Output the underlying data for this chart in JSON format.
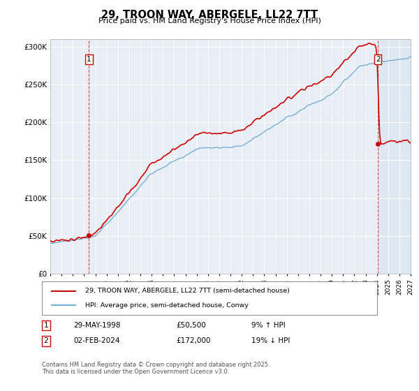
{
  "title": "29, TROON WAY, ABERGELE, LL22 7TT",
  "subtitle": "Price paid vs. HM Land Registry's House Price Index (HPI)",
  "legend_line1": "29, TROON WAY, ABERGELE, LL22 7TT (semi-detached house)",
  "legend_line2": "HPI: Average price, semi-detached house, Conwy",
  "annotation1_date": "29-MAY-1998",
  "annotation1_price": "£50,500",
  "annotation1_hpi": "9% ↑ HPI",
  "annotation1_year": 1998.42,
  "annotation1_value": 50500,
  "annotation2_date": "02-FEB-2024",
  "annotation2_price": "£172,000",
  "annotation2_hpi": "19% ↓ HPI",
  "annotation2_year": 2024.09,
  "annotation2_value": 172000,
  "ytick_labels": [
    "£0",
    "£50K",
    "£100K",
    "£150K",
    "£200K",
    "£250K",
    "£300K"
  ],
  "yticks": [
    0,
    50000,
    100000,
    150000,
    200000,
    250000,
    300000
  ],
  "xmin": 1995,
  "xmax": 2027,
  "ymin": 0,
  "ymax": 310000,
  "price_color": "#cc0000",
  "hpi_color": "#7aadd4",
  "plot_bg_color": "#e8eef5",
  "hatch_color": "#c8d8e8",
  "footnote": "Contains HM Land Registry data © Crown copyright and database right 2025.\nThis data is licensed under the Open Government Licence v3.0.",
  "background_color": "#ffffff",
  "grid_color": "#ffffff"
}
